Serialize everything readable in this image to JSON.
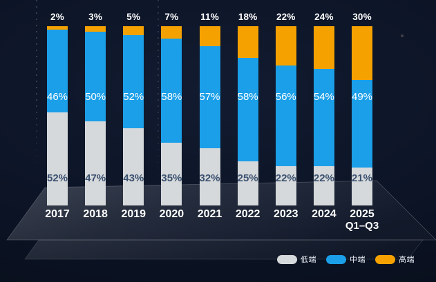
{
  "chart_data": {
    "type": "bar",
    "stacked": true,
    "title": "",
    "xlabel": "",
    "ylabel": "",
    "ylim": [
      0,
      100
    ],
    "grid": false,
    "legend_position": "bottom-right",
    "value_suffix": "%",
    "categories": [
      "2017",
      "2018",
      "2019",
      "2020",
      "2021",
      "2022",
      "2023",
      "2024",
      "2025"
    ],
    "category_sublabels": [
      "",
      "",
      "",
      "",
      "",
      "",
      "",
      "",
      "Q1–Q3"
    ],
    "series": [
      {
        "name": "低端",
        "color": "#D6D9DB",
        "label_color": "#3B5170",
        "values": [
          52,
          47,
          43,
          35,
          32,
          25,
          22,
          22,
          21
        ]
      },
      {
        "name": "中端",
        "color": "#1B9FE8",
        "label_color": "#FFFFFF",
        "values": [
          46,
          50,
          52,
          58,
          57,
          58,
          56,
          54,
          49
        ]
      },
      {
        "name": "高端",
        "color": "#F5A200",
        "label_color": "#FFFFFF",
        "values": [
          2,
          3,
          5,
          7,
          11,
          18,
          22,
          24,
          30
        ]
      }
    ]
  },
  "colors": {
    "background_center": "#121B30",
    "background_edge": "#070C18",
    "platform_highlight": "#FFFFFF",
    "top_label_text": "#FFFFFF",
    "low_label_text": "#3B5170"
  }
}
